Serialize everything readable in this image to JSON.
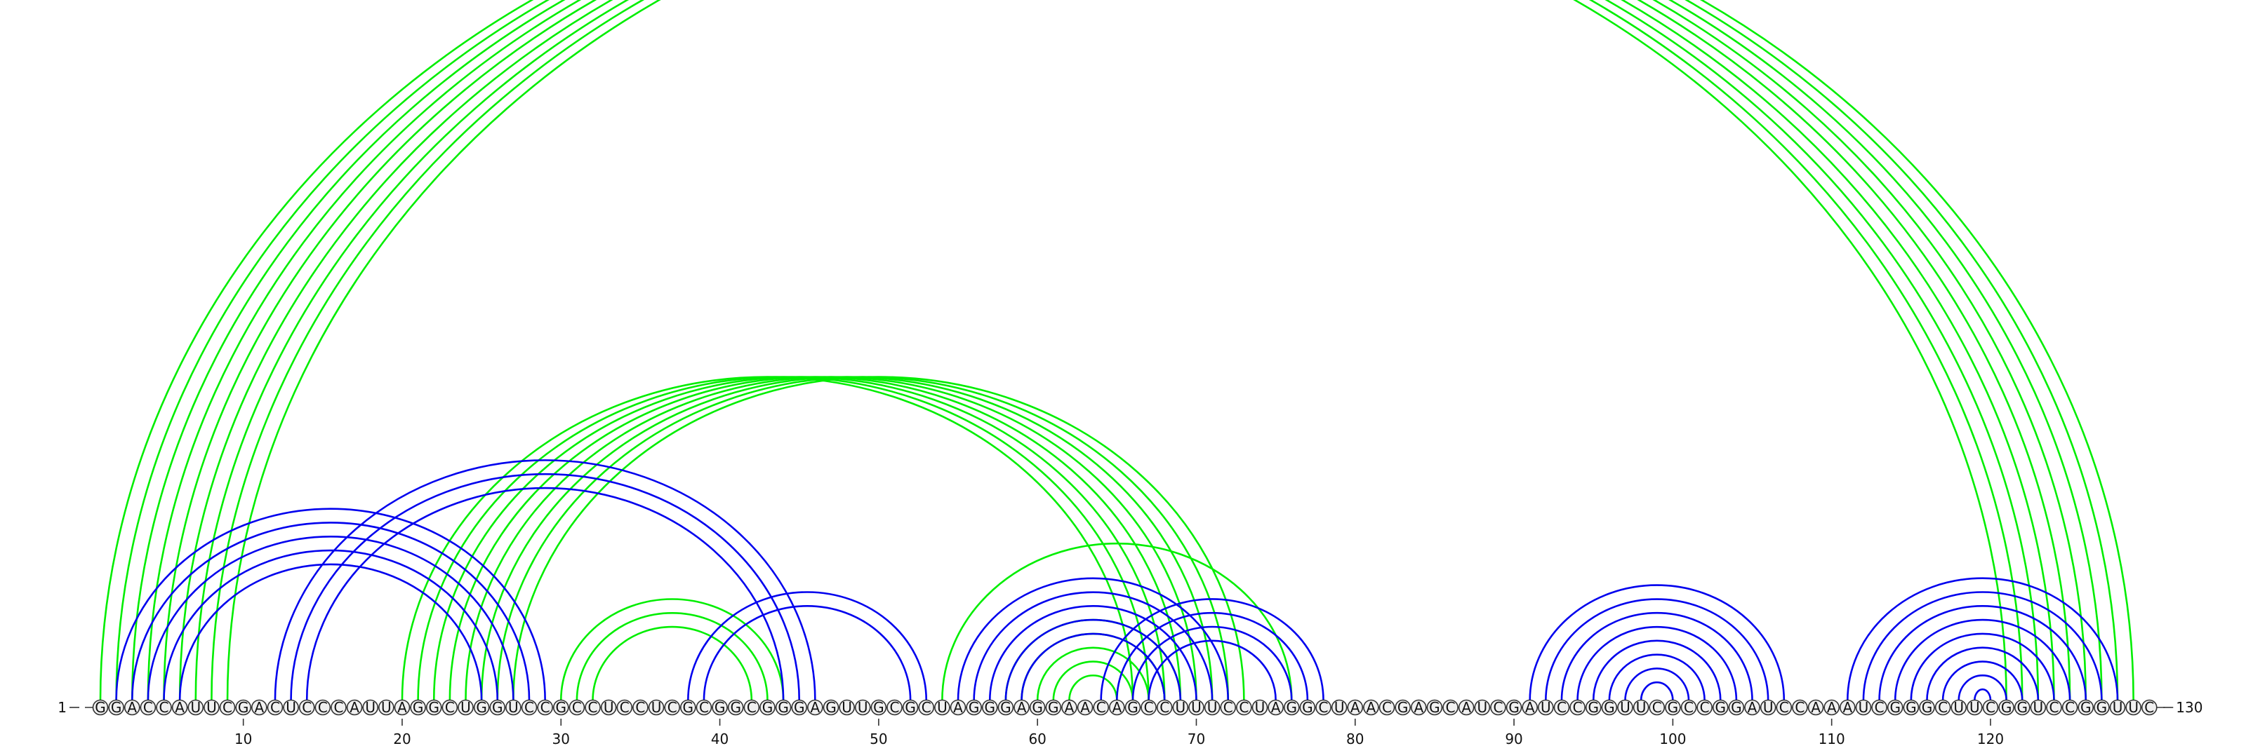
{
  "chart_data": {
    "type": "arc-diagram",
    "sequence": "GGACCAUUCGACUCCCAUUAGGCUGGUCCGCCUCCUCGCGGCGGGAGUUGCGCUAGGGAGGAACAGCCUUUCCUAGGCUAACGAGCAUCGAUCCGGUUCGCCGGAUCCAAAUCGGGCUUCGGUCCGGUUC",
    "length": 130,
    "start_label": "1",
    "end_label": "130",
    "ticks": [
      10,
      20,
      30,
      40,
      50,
      60,
      70,
      80,
      90,
      100,
      110,
      120
    ],
    "colors": {
      "primary": "#0000ee",
      "alternate": "#00ee00"
    },
    "structure_a_pairs": [
      [
        2,
        29
      ],
      [
        3,
        28
      ],
      [
        4,
        27
      ],
      [
        5,
        26
      ],
      [
        6,
        25
      ],
      [
        12,
        46
      ],
      [
        13,
        45
      ],
      [
        14,
        44
      ],
      [
        38,
        53
      ],
      [
        39,
        52
      ],
      [
        55,
        72
      ],
      [
        56,
        71
      ],
      [
        57,
        70
      ],
      [
        58,
        69
      ],
      [
        59,
        68
      ],
      [
        64,
        78
      ],
      [
        65,
        77
      ],
      [
        66,
        76
      ],
      [
        67,
        75
      ],
      [
        91,
        107
      ],
      [
        92,
        106
      ],
      [
        93,
        105
      ],
      [
        94,
        104
      ],
      [
        95,
        103
      ],
      [
        96,
        102
      ],
      [
        97,
        101
      ],
      [
        98,
        100
      ],
      [
        111,
        128
      ],
      [
        112,
        127
      ],
      [
        113,
        126
      ],
      [
        114,
        125
      ],
      [
        115,
        124
      ],
      [
        116,
        123
      ],
      [
        117,
        122
      ],
      [
        118,
        121
      ],
      [
        119,
        120
      ]
    ],
    "structure_b_pairs": [
      [
        1,
        121
      ],
      [
        2,
        122
      ],
      [
        3,
        123
      ],
      [
        4,
        124
      ],
      [
        5,
        125
      ],
      [
        6,
        126
      ],
      [
        7,
        127
      ],
      [
        8,
        128
      ],
      [
        9,
        129
      ],
      [
        20,
        66
      ],
      [
        21,
        67
      ],
      [
        22,
        68
      ],
      [
        23,
        69
      ],
      [
        24,
        70
      ],
      [
        25,
        71
      ],
      [
        26,
        72
      ],
      [
        27,
        73
      ],
      [
        30,
        44
      ],
      [
        31,
        43
      ],
      [
        32,
        42
      ],
      [
        58,
        69
      ],
      [
        59,
        68
      ],
      [
        60,
        67
      ],
      [
        61,
        66
      ],
      [
        62,
        65
      ],
      [
        54,
        76
      ]
    ]
  }
}
